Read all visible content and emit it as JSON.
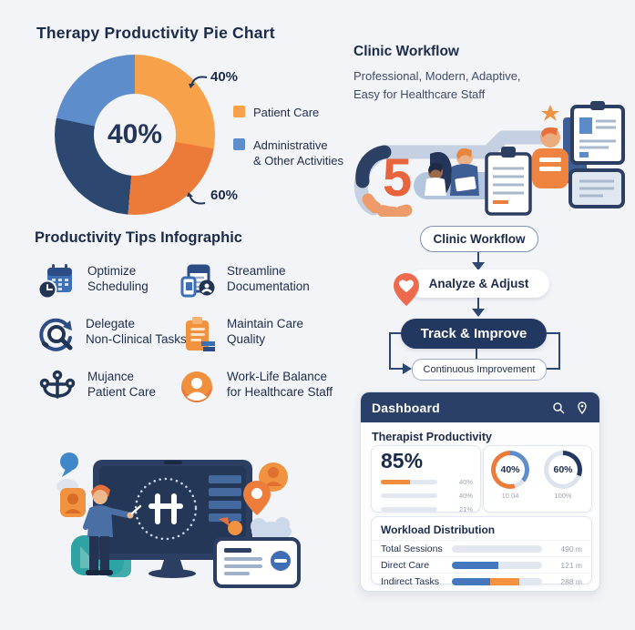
{
  "page": {
    "background": "#F3F4F7"
  },
  "palette": {
    "navy_text": "#1C2B4A",
    "dark_navy": "#223860",
    "header_navy": "#2B4068",
    "orange": "#F08C3E",
    "orange_deep": "#EC7A38",
    "orange_light": "#F7A14B",
    "blue": "#5E8DCB",
    "blue_mid": "#4477BB",
    "track_gray": "#E3E8F0",
    "muted": "#99A2B3"
  },
  "pie_section": {
    "title": "Therapy Productivity Pie Chart",
    "legend": [
      {
        "label": "Patient Care"
      },
      {
        "line1": "Administrative",
        "line2": "& Other Activities"
      }
    ]
  },
  "clinic_workflow": {
    "title": "Clinic Workflow",
    "subtitle_line1": "Professional, Modern, Adaptive,",
    "subtitle_line2": "Easy for Healthcare Staff",
    "illustration_numeral": "5"
  },
  "tips": {
    "title": "Productivity Tips Infographic",
    "items": [
      {
        "icon": "calendar-clock-icon",
        "line1": "Optimize",
        "line2": "Scheduling"
      },
      {
        "icon": "documents-icon",
        "line1": "Streamline",
        "line2": "Documentation"
      },
      {
        "icon": "delegate-cycle-icon",
        "line1": "Delegate",
        "line2": "Non-Clinical Tasks"
      },
      {
        "icon": "clipboard-icon",
        "line1": "Maintain Care",
        "line2": "Quality"
      },
      {
        "icon": "anchor-people-icon",
        "line1": "Mujance",
        "line2": "Patient Care"
      },
      {
        "icon": "person-badge-icon",
        "line1": "Work-Life Balance",
        "line2": "for Healthcare Staff"
      }
    ]
  },
  "flowchart": {
    "step1": "Clinic Workflow",
    "step2": "Analyze & Adjust",
    "step3": "Track & Improve",
    "step4": "Continuous Improvement"
  },
  "dashboard": {
    "title": "Dashboard",
    "header_icons": [
      "search-icon",
      "pin-icon"
    ],
    "productivity_title": "Therapist Productivity",
    "big_value": "85%",
    "workload_title": "Workload Distribution"
  },
  "chart_data": [
    {
      "id": "therapy_pie",
      "type": "pie",
      "title": "Therapy Productivity Pie Chart",
      "slices": [
        {
          "label": "Patient Care",
          "value": 40,
          "color": "#F7A14B"
        },
        {
          "label": "Administrative & Other Activities",
          "value": 60,
          "color": "#2C4770"
        }
      ],
      "display_segments": [
        {
          "color": "#F7A14B",
          "deg": 100
        },
        {
          "color": "#EC7A38",
          "deg": 85
        },
        {
          "color": "#2C4770",
          "deg": 97
        },
        {
          "color": "#5E8DCB",
          "deg": 78
        }
      ],
      "center_label": "40%",
      "callouts": [
        "40%",
        "60%"
      ],
      "legend_position": "right"
    },
    {
      "id": "gauge_direct",
      "type": "donut",
      "value": 40,
      "value_label": "40%",
      "caption": "10 04",
      "segments": [
        {
          "color": "#5E8DCB",
          "deg": 130
        },
        {
          "color": "#DDE3EC",
          "deg": 35
        },
        {
          "color": "#EC7A38",
          "deg": 195
        }
      ]
    },
    {
      "id": "gauge_indirect",
      "type": "donut",
      "value": 60,
      "value_label": "60%",
      "caption": "100%",
      "segments": [
        {
          "color": "#223860",
          "deg": 110
        },
        {
          "color": "#DDE3EC",
          "deg": 250
        }
      ]
    },
    {
      "id": "mini_bars",
      "type": "bar",
      "labels": [
        "40%",
        "40%",
        "21%"
      ],
      "fills": [
        [
          {
            "color": "#F08C3E",
            "pct": 52
          }
        ],
        [],
        []
      ]
    },
    {
      "id": "workload",
      "type": "bar",
      "categories": [
        "Total Sessions",
        "Direct Care",
        "Indirect Tasks"
      ],
      "value_labels": [
        "490 m",
        "121 m",
        "288 m"
      ],
      "fills": [
        [],
        [
          {
            "color": "#4477BB",
            "pct": 52
          }
        ],
        [
          {
            "color": "#4477BB",
            "pct": 42
          },
          {
            "color": "#F59140",
            "pct": 33
          }
        ]
      ]
    }
  ]
}
